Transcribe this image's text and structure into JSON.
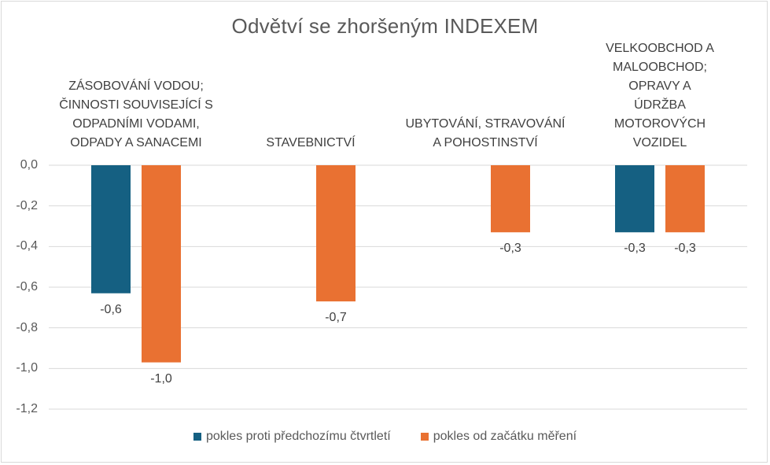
{
  "chart_data": {
    "type": "bar",
    "title": "Odvětví se zhoršeným INDEXEM",
    "categories": [
      "ZÁSOBOVÁNÍ VODOU;\nČINNOSTI SOUVISEJÍCÍ S\nODPADNÍMI VODAMI,\nODPADY A SANACEMI",
      "STAVEBNICTVÍ",
      "UBYTOVÁNÍ, STRAVOVÁNÍ\nA POHOSTINSTVÍ",
      "VELKOOBCHOD A\nMALOOBCHOD; OPRAVY A\nÚDRŽBA MOTOROVÝCH\nVOZIDEL"
    ],
    "series": [
      {
        "name": "pokles proti předchozímu čtvrtletí",
        "color": "#156082",
        "values": [
          -0.63,
          null,
          null,
          -0.33
        ],
        "labels": [
          "-0,6",
          null,
          null,
          "-0,3"
        ]
      },
      {
        "name": "pokles od začátku měření",
        "color": "#E97132",
        "values": [
          -0.97,
          -0.67,
          -0.33,
          -0.33
        ],
        "labels": [
          "-1,0",
          "-0,7",
          "-0,3",
          "-0,3"
        ]
      }
    ],
    "yticks": [
      0.0,
      -0.2,
      -0.4,
      -0.6,
      -0.8,
      -1.0,
      -1.2
    ],
    "ytick_labels": [
      "0,0",
      "-0,2",
      "-0,4",
      "-0,6",
      "-0,8",
      "-1,0",
      "-1,2"
    ],
    "ylim": [
      -1.2,
      0
    ],
    "xlabel": "",
    "ylabel": "",
    "grid": true,
    "legend_position": "bottom"
  }
}
